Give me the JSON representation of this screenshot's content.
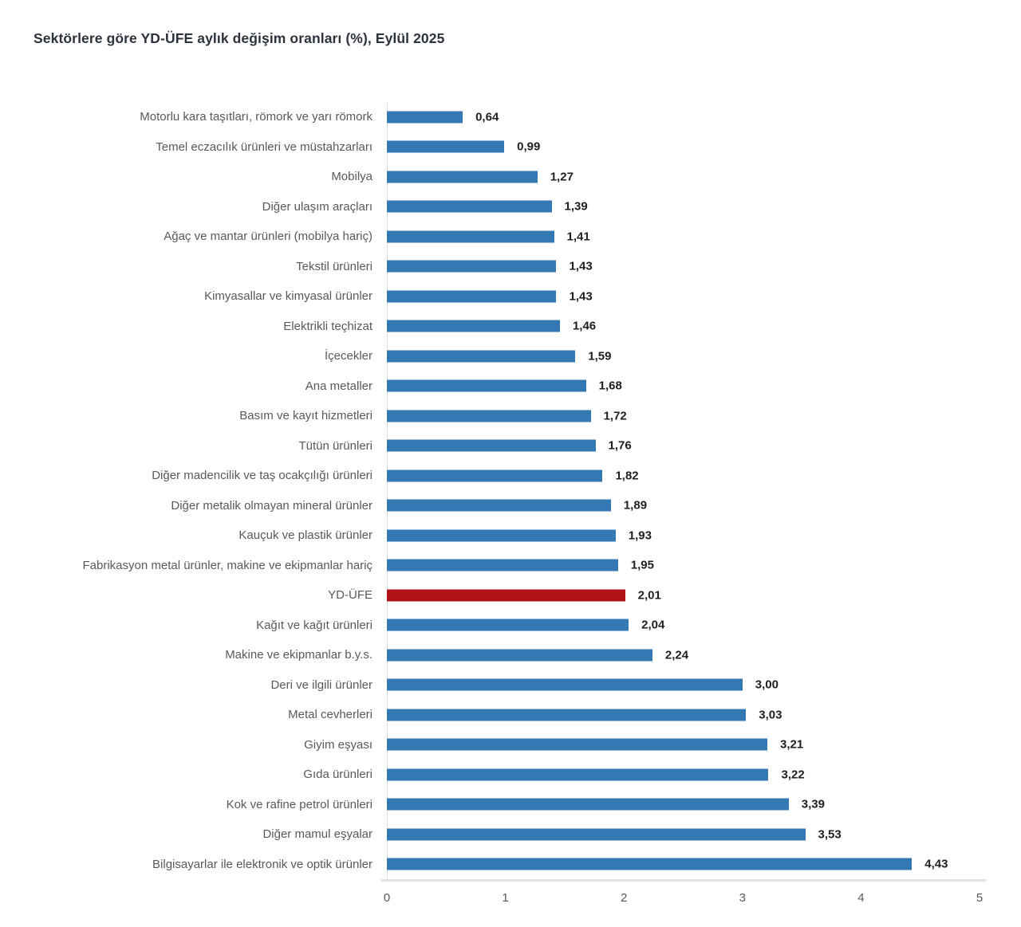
{
  "title": "Sektörlere göre YD-ÜFE aylık değişim oranları (%), Eylül 2025",
  "colors": {
    "bar_blue": "#3479b4",
    "bar_red_highlight": "#b01116",
    "title_text": "#2c333d",
    "category_text": "#595959",
    "value_text": "#1f1f1f",
    "tick_text": "#595959",
    "axis_line": "#dcdfe2"
  },
  "chart_data": {
    "type": "bar",
    "orientation": "horizontal",
    "title": "Sektörlere göre YD-ÜFE aylık değişim oranları (%), Eylül 2025",
    "categories": [
      "Motorlu kara taşıtları, römork ve yarı römork",
      "Temel eczacılık ürünleri ve müstahzarları",
      "Mobilya",
      "Diğer ulaşım araçları",
      "Ağaç ve mantar ürünleri (mobilya hariç)",
      "Tekstil ürünleri",
      "Kimyasallar ve kimyasal ürünler",
      "Elektrikli teçhizat",
      "İçecekler",
      "Ana metaller",
      "Basım ve kayıt hizmetleri",
      "Tütün ürünleri",
      "Diğer madencilik ve taş ocakçılığı ürünleri",
      "Diğer metalik olmayan mineral ürünler",
      "Kauçuk ve plastik ürünler",
      "Fabrikasyon metal ürünler, makine ve ekipmanlar hariç",
      "YD-ÜFE",
      "Kağıt ve kağıt ürünleri",
      "Makine ve ekipmanlar b.y.s.",
      "Deri ve ilgili ürünler",
      "Metal cevherleri",
      "Giyim eşyası",
      "Gıda ürünleri",
      "Kok ve rafine petrol ürünleri",
      "Diğer mamul eşyalar",
      "Bilgisayarlar ile elektronik ve optik ürünler"
    ],
    "values": [
      0.64,
      0.99,
      1.27,
      1.39,
      1.41,
      1.43,
      1.43,
      1.46,
      1.59,
      1.68,
      1.72,
      1.76,
      1.82,
      1.89,
      1.93,
      1.95,
      2.01,
      2.04,
      2.24,
      3.0,
      3.03,
      3.21,
      3.22,
      3.39,
      3.53,
      4.43
    ],
    "value_labels": [
      "0,64",
      "0,99",
      "1,27",
      "1,39",
      "1,41",
      "1,43",
      "1,43",
      "1,46",
      "1,59",
      "1,68",
      "1,72",
      "1,76",
      "1,82",
      "1,89",
      "1,93",
      "1,95",
      "2,01",
      "2,04",
      "2,24",
      "3,00",
      "3,03",
      "3,21",
      "3,22",
      "3,39",
      "3,53",
      "4,43"
    ],
    "highlight_category": "YD-ÜFE",
    "highlight_index": 16,
    "xlim": [
      0,
      5
    ],
    "x_ticks": [
      "0",
      "1",
      "2",
      "3",
      "4",
      "5"
    ],
    "xlabel": "",
    "ylabel": "",
    "grid": "none",
    "legend": "none"
  }
}
